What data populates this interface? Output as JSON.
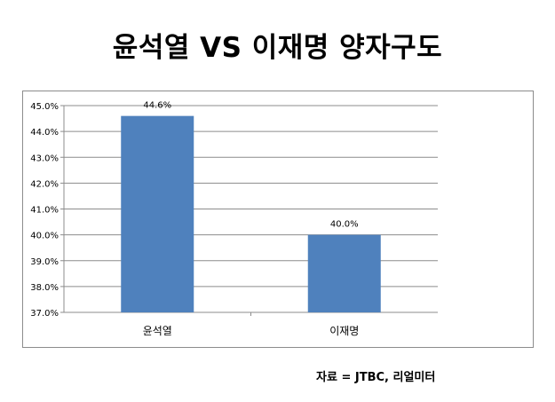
{
  "title": "윤석열 VS 이재명 양자구도",
  "source": "자료 = JTBC, 리얼미터",
  "chart_data": {
    "type": "bar",
    "categories": [
      "윤석열",
      "이재명"
    ],
    "values": [
      44.6,
      40.0
    ],
    "data_labels": [
      "44.6%",
      "40.0%"
    ],
    "yticks": [
      "37.0%",
      "38.0%",
      "39.0%",
      "40.0%",
      "41.0%",
      "42.0%",
      "43.0%",
      "44.0%",
      "45.0%"
    ],
    "ylim": [
      37,
      45
    ],
    "grid": true,
    "legend": "none",
    "bar_color": "#4f81bd"
  }
}
